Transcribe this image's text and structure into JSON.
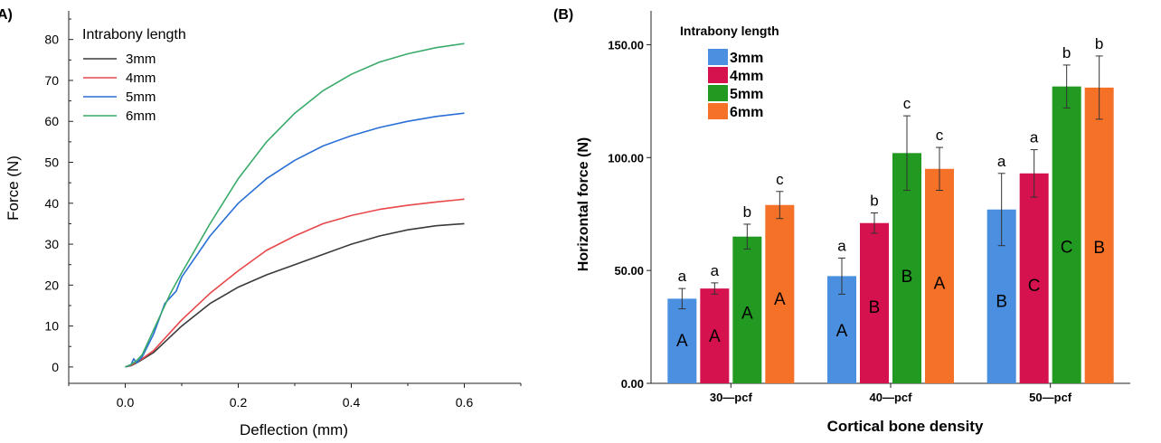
{
  "chart_data": [
    {
      "type": "line",
      "panel_label": "A)",
      "xlabel": "Deflection (mm)",
      "ylabel": "Force (N)",
      "xlim": [
        -0.1,
        0.7
      ],
      "ylim": [
        -4,
        87
      ],
      "x_ticks": [
        0.0,
        0.2,
        0.4,
        0.6
      ],
      "x_tick_labels": [
        "0.0",
        "0.2",
        "0.4",
        "0.6"
      ],
      "y_ticks": [
        0,
        10,
        20,
        30,
        40,
        50,
        60,
        70,
        80
      ],
      "y_tick_labels": [
        "0",
        "10",
        "20",
        "30",
        "40",
        "50",
        "60",
        "70",
        "80"
      ],
      "grid": false,
      "legend_title": "Intrabony length",
      "legend_position": "top-left",
      "series": [
        {
          "name": "3mm",
          "color": "#3a3a3a",
          "points": [
            [
              0,
              0
            ],
            [
              0.01,
              0.3
            ],
            [
              0.02,
              1.0
            ],
            [
              0.03,
              1.8
            ],
            [
              0.05,
              3.5
            ],
            [
              0.1,
              10
            ],
            [
              0.15,
              15.5
            ],
            [
              0.2,
              19.5
            ],
            [
              0.25,
              22.5
            ],
            [
              0.3,
              25
            ],
            [
              0.35,
              27.5
            ],
            [
              0.4,
              30
            ],
            [
              0.45,
              32
            ],
            [
              0.5,
              33.5
            ],
            [
              0.55,
              34.5
            ],
            [
              0.6,
              35
            ]
          ]
        },
        {
          "name": "4mm",
          "color": "#e8474a",
          "points": [
            [
              0,
              0
            ],
            [
              0.01,
              0.4
            ],
            [
              0.02,
              1.2
            ],
            [
              0.03,
              2
            ],
            [
              0.05,
              4
            ],
            [
              0.1,
              11.5
            ],
            [
              0.15,
              18
            ],
            [
              0.2,
              23.5
            ],
            [
              0.25,
              28.5
            ],
            [
              0.3,
              32
            ],
            [
              0.35,
              35
            ],
            [
              0.4,
              37
            ],
            [
              0.45,
              38.5
            ],
            [
              0.5,
              39.5
            ],
            [
              0.55,
              40.3
            ],
            [
              0.6,
              41
            ]
          ]
        },
        {
          "name": "5mm",
          "color": "#2a6fd6",
          "points": [
            [
              0,
              0
            ],
            [
              0.01,
              0.5
            ],
            [
              0.015,
              2
            ],
            [
              0.02,
              1
            ],
            [
              0.03,
              2.5
            ],
            [
              0.05,
              8
            ],
            [
              0.07,
              15.5
            ],
            [
              0.09,
              18.5
            ],
            [
              0.1,
              22
            ],
            [
              0.15,
              32
            ],
            [
              0.2,
              40
            ],
            [
              0.25,
              46
            ],
            [
              0.3,
              50.5
            ],
            [
              0.35,
              54
            ],
            [
              0.4,
              56.5
            ],
            [
              0.45,
              58.5
            ],
            [
              0.5,
              60
            ],
            [
              0.55,
              61.2
            ],
            [
              0.6,
              62
            ]
          ]
        },
        {
          "name": "6mm",
          "color": "#3aaa6a",
          "points": [
            [
              0,
              0
            ],
            [
              0.01,
              0.6
            ],
            [
              0.02,
              1.5
            ],
            [
              0.03,
              3
            ],
            [
              0.05,
              9
            ],
            [
              0.08,
              18
            ],
            [
              0.1,
              23
            ],
            [
              0.15,
              35
            ],
            [
              0.2,
              46
            ],
            [
              0.25,
              55
            ],
            [
              0.3,
              62
            ],
            [
              0.35,
              67.5
            ],
            [
              0.4,
              71.5
            ],
            [
              0.45,
              74.5
            ],
            [
              0.5,
              76.5
            ],
            [
              0.55,
              78
            ],
            [
              0.6,
              79
            ]
          ]
        }
      ]
    },
    {
      "type": "bar",
      "panel_label": "(B)",
      "xlabel": "Cortical bone density",
      "ylabel": "Horizontal force (N)",
      "ylim": [
        0,
        165
      ],
      "y_ticks": [
        0,
        50,
        100,
        150
      ],
      "y_tick_labels": [
        "0.00",
        "50.00",
        "100.00",
        "150.00"
      ],
      "grid": false,
      "legend_title": "Intrabony length",
      "legend_position": "top-left",
      "categories": [
        "30—pcf",
        "40—pcf",
        "50—pcf"
      ],
      "series": [
        {
          "name": "3mm",
          "color": "#4a8fe0",
          "values": [
            37.5,
            47.5,
            77
          ],
          "errors": [
            4.5,
            8,
            16
          ],
          "letters_top": [
            "a",
            "a",
            "a"
          ],
          "letters_inside": [
            "A",
            "A",
            "B"
          ]
        },
        {
          "name": "4mm",
          "color": "#d6124e",
          "values": [
            42,
            71,
            93
          ],
          "errors": [
            2.5,
            4.5,
            10.5
          ],
          "letters_top": [
            "a",
            "b",
            "a"
          ],
          "letters_inside": [
            "A",
            "B",
            "C"
          ]
        },
        {
          "name": "5mm",
          "color": "#229a22",
          "values": [
            65,
            102,
            131.5
          ],
          "errors": [
            5.5,
            16.5,
            9.5
          ],
          "letters_top": [
            "b",
            "c",
            "b"
          ],
          "letters_inside": [
            "A",
            "B",
            "C"
          ]
        },
        {
          "name": "6mm",
          "color": "#f57128",
          "values": [
            79,
            95,
            131
          ],
          "errors": [
            6,
            9.5,
            14
          ],
          "letters_top": [
            "c",
            "c",
            "b"
          ],
          "letters_inside": [
            "A",
            "A",
            "B"
          ]
        }
      ]
    }
  ]
}
